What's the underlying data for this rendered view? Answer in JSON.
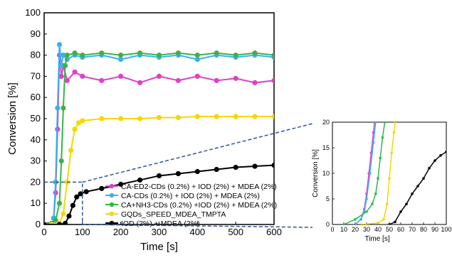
{
  "chart_data": [
    {
      "type": "line",
      "title": "",
      "xlabel": "Time [s]",
      "ylabel": "Conversion [%]",
      "xlim": [
        0,
        600
      ],
      "ylim": [
        0,
        100
      ],
      "x_ticks": [
        "0",
        "100",
        "200",
        "300",
        "400",
        "500",
        "600"
      ],
      "y_ticks": [
        "0",
        "10",
        "20",
        "30",
        "40",
        "50",
        "60",
        "70",
        "80",
        "90",
        "100"
      ],
      "legend_position": "bottom-right",
      "series": [
        {
          "name": "CA-ED2-CDs (0.2%) + IOD (2%) + MDEA (2%)",
          "color": "#e040c8",
          "points": [
            [
              0,
              0
            ],
            [
              10,
              0
            ],
            [
              20,
              0.5
            ],
            [
              25,
              3
            ],
            [
              30,
              15
            ],
            [
              35,
              45
            ],
            [
              40,
              80
            ],
            [
              45,
              70
            ],
            [
              50,
              75
            ],
            [
              60,
              68
            ],
            [
              80,
              72
            ],
            [
              100,
              70
            ],
            [
              150,
              68
            ],
            [
              200,
              70
            ],
            [
              250,
              67
            ],
            [
              300,
              70
            ],
            [
              350,
              68
            ],
            [
              400,
              70
            ],
            [
              450,
              68
            ],
            [
              500,
              69
            ],
            [
              550,
              67
            ],
            [
              600,
              68
            ]
          ]
        },
        {
          "name": "CA-CDs (0.2%) + IOD (2%) + MDEA (2%)",
          "color": "#3ab0f0",
          "points": [
            [
              0,
              0
            ],
            [
              10,
              0
            ],
            [
              20,
              0.5
            ],
            [
              25,
              3
            ],
            [
              30,
              20
            ],
            [
              35,
              55
            ],
            [
              40,
              85
            ],
            [
              45,
              75
            ],
            [
              50,
              80
            ],
            [
              60,
              78
            ],
            [
              80,
              80
            ],
            [
              100,
              79
            ],
            [
              150,
              80
            ],
            [
              200,
              78
            ],
            [
              250,
              80
            ],
            [
              300,
              79
            ],
            [
              350,
              80
            ],
            [
              400,
              78
            ],
            [
              450,
              80
            ],
            [
              500,
              79
            ],
            [
              550,
              80
            ],
            [
              600,
              79
            ]
          ]
        },
        {
          "name": "CA+NH3-CDs (0.2%) +IOD (2%) + MDEA (2%)",
          "color": "#2eb84a",
          "points": [
            [
              0,
              0
            ],
            [
              10,
              0
            ],
            [
              20,
              0.5
            ],
            [
              30,
              2
            ],
            [
              40,
              10
            ],
            [
              45,
              30
            ],
            [
              50,
              55
            ],
            [
              55,
              75
            ],
            [
              60,
              80
            ],
            [
              80,
              81
            ],
            [
              100,
              80
            ],
            [
              150,
              81
            ],
            [
              200,
              80
            ],
            [
              250,
              81
            ],
            [
              300,
              80
            ],
            [
              350,
              81
            ],
            [
              400,
              80
            ],
            [
              450,
              81
            ],
            [
              500,
              80
            ],
            [
              550,
              81
            ],
            [
              600,
              80
            ]
          ]
        },
        {
          "name": "GQDs_SPEED_MDEA_TMPTA",
          "color": "#f5d800",
          "points": [
            [
              0,
              0
            ],
            [
              20,
              0
            ],
            [
              40,
              0.5
            ],
            [
              50,
              5
            ],
            [
              60,
              20
            ],
            [
              70,
              35
            ],
            [
              80,
              45
            ],
            [
              90,
              48
            ],
            [
              100,
              49
            ],
            [
              150,
              50
            ],
            [
              200,
              50
            ],
            [
              250,
              50
            ],
            [
              300,
              50.5
            ],
            [
              350,
              50.5
            ],
            [
              400,
              51
            ],
            [
              450,
              51
            ],
            [
              500,
              51
            ],
            [
              550,
              51
            ],
            [
              600,
              51
            ]
          ]
        },
        {
          "name": "IOD (2%) + MDEA (2%)",
          "color": "#000000",
          "points": [
            [
              0,
              0
            ],
            [
              40,
              0
            ],
            [
              55,
              0.5
            ],
            [
              65,
              4
            ],
            [
              75,
              9
            ],
            [
              85,
              13
            ],
            [
              95,
              14.5
            ],
            [
              110,
              15.5
            ],
            [
              150,
              17
            ],
            [
              200,
              19
            ],
            [
              250,
              21
            ],
            [
              300,
              23
            ],
            [
              350,
              24
            ],
            [
              400,
              25
            ],
            [
              450,
              26
            ],
            [
              500,
              27
            ],
            [
              550,
              27.5
            ],
            [
              600,
              28
            ]
          ]
        }
      ]
    },
    {
      "type": "line",
      "title": "",
      "xlabel": "Time [s]",
      "ylabel": "Conversion [%]",
      "xlim": [
        0,
        100
      ],
      "ylim": [
        0,
        20
      ],
      "x_ticks": [
        "0",
        "10",
        "20",
        "30",
        "40",
        "50",
        "60",
        "70",
        "80",
        "90",
        "100"
      ],
      "y_ticks": [
        "0",
        "5",
        "10",
        "15",
        "20"
      ],
      "series": [
        {
          "color": "#e040c8",
          "points": [
            [
              20,
              0
            ],
            [
              25,
              1
            ],
            [
              28,
              3
            ],
            [
              30,
              6
            ],
            [
              32,
              10
            ],
            [
              34,
              14
            ],
            [
              36,
              18
            ],
            [
              37,
              20
            ]
          ]
        },
        {
          "color": "#3ab0f0",
          "points": [
            [
              20,
              0
            ],
            [
              25,
              1
            ],
            [
              28,
              2.5
            ],
            [
              30,
              5
            ],
            [
              33,
              10
            ],
            [
              36,
              16
            ],
            [
              38,
              20
            ]
          ]
        },
        {
          "color": "#2eb84a",
          "points": [
            [
              10,
              0
            ],
            [
              20,
              1
            ],
            [
              30,
              2.5
            ],
            [
              35,
              4
            ],
            [
              38,
              6
            ],
            [
              40,
              9
            ],
            [
              42,
              13
            ],
            [
              44,
              17
            ],
            [
              46,
              20
            ]
          ]
        },
        {
          "color": "#f5d800",
          "points": [
            [
              25,
              0
            ],
            [
              40,
              0.3
            ],
            [
              45,
              1
            ],
            [
              48,
              4
            ],
            [
              50,
              9
            ],
            [
              52,
              14
            ],
            [
              54,
              18
            ],
            [
              55,
              20
            ]
          ]
        },
        {
          "color": "#000000",
          "points": [
            [
              50,
              0
            ],
            [
              55,
              0.5
            ],
            [
              60,
              2.5
            ],
            [
              65,
              4
            ],
            [
              70,
              6
            ],
            [
              75,
              7.5
            ],
            [
              80,
              9
            ],
            [
              85,
              11
            ],
            [
              90,
              12.5
            ],
            [
              95,
              13.5
            ],
            [
              100,
              14.2
            ]
          ]
        }
      ]
    }
  ]
}
